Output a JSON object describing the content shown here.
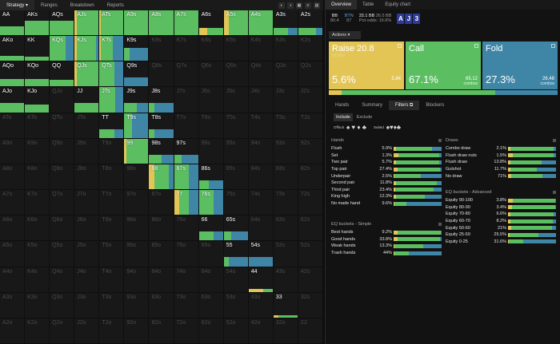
{
  "colors": {
    "raise": "#e3c555",
    "call": "#5bbf62",
    "fold": "#3f86a6",
    "empty": "#181818"
  },
  "left_tabs": [
    {
      "label": "Strategy ▾",
      "active": true
    },
    {
      "label": "Ranges"
    },
    {
      "label": "Breakdown"
    },
    {
      "label": "Reports"
    }
  ],
  "grid": [
    [
      "AA",
      "AKs",
      "AQs",
      "AJs",
      "ATs",
      "A9s",
      "A8s",
      "A7s",
      "A6s",
      "A5s",
      "A4s",
      "A3s",
      "A2s"
    ],
    [
      "AKo",
      "KK",
      "KQs",
      "KJs",
      "KTs",
      "K9s",
      "K8s",
      "K7s",
      "K6s",
      "K5s",
      "K4s",
      "K3s",
      "K2s"
    ],
    [
      "AQo",
      "KQo",
      "QQ",
      "QJs",
      "QTs",
      "Q9s",
      "Q8s",
      "Q7s",
      "Q6s",
      "Q5s",
      "Q4s",
      "Q3s",
      "Q2s"
    ],
    [
      "AJo",
      "KJo",
      "QJo",
      "JJ",
      "JTs",
      "J9s",
      "J8s",
      "J7s",
      "J6s",
      "J5s",
      "J4s",
      "J3s",
      "J2s"
    ],
    [
      "ATo",
      "KTo",
      "QTo",
      "JTo",
      "TT",
      "T9s",
      "T8s",
      "T7s",
      "T6s",
      "T5s",
      "T4s",
      "T3s",
      "T2s"
    ],
    [
      "A9o",
      "K9o",
      "Q9o",
      "J9o",
      "T9o",
      "99",
      "98s",
      "97s",
      "96s",
      "95s",
      "94s",
      "93s",
      "92s"
    ],
    [
      "A8o",
      "K8o",
      "Q8o",
      "J8o",
      "T8o",
      "98o",
      "88",
      "87s",
      "86s",
      "85s",
      "84s",
      "83s",
      "82s"
    ],
    [
      "A7o",
      "K7o",
      "Q7o",
      "J7o",
      "T7o",
      "97o",
      "87o",
      "77",
      "76s",
      "75s",
      "74s",
      "73s",
      "72s"
    ],
    [
      "A6o",
      "K6o",
      "Q6o",
      "J6o",
      "T6o",
      "96o",
      "86o",
      "76o",
      "66",
      "65s",
      "64s",
      "63s",
      "62s"
    ],
    [
      "A5o",
      "K5o",
      "Q5o",
      "J5o",
      "T5o",
      "95o",
      "85o",
      "75o",
      "65o",
      "55",
      "54s",
      "53s",
      "52s"
    ],
    [
      "A4o",
      "K4o",
      "Q4o",
      "J4o",
      "T4o",
      "94o",
      "84o",
      "74o",
      "64o",
      "54o",
      "44",
      "43s",
      "42s"
    ],
    [
      "A3o",
      "K3o",
      "Q3o",
      "J3o",
      "T3o",
      "93o",
      "83o",
      "73o",
      "63o",
      "53o",
      "43o",
      "33",
      "32s"
    ],
    [
      "A2o",
      "K2o",
      "Q2o",
      "J2o",
      "T2o",
      "92o",
      "82o",
      "72o",
      "62o",
      "52o",
      "42o",
      "32o",
      "22"
    ]
  ],
  "right_tabs": [
    {
      "label": "Overview",
      "active": true
    },
    {
      "label": "Table"
    },
    {
      "label": "Equity chart"
    }
  ],
  "info": {
    "pos1": "BB",
    "stack1": "80.4",
    "pos2": "BTN",
    "stack2": "87",
    "pot": "33.1 BB",
    "pot2": "26.5 BB",
    "pot_odds_label": "Pot odds:",
    "pot_odds": "16.6%",
    "board": [
      "A",
      "J",
      "3"
    ]
  },
  "actions_label": "Actions ▾",
  "actions": [
    {
      "name": "Raise 20.8",
      "sub": "(63%)",
      "pct": "5.6%",
      "amount": "5.84",
      "combos": "",
      "color": "#e3c555"
    },
    {
      "name": "Call",
      "sub": "",
      "pct": "67.1%",
      "amount": "65.12",
      "combos": "combos",
      "color": "#5bbf62"
    },
    {
      "name": "Fold",
      "sub": "",
      "pct": "27.3%",
      "amount": "26.48",
      "combos": "combos",
      "color": "#3f86a6"
    }
  ],
  "freq": {
    "raise": 0.056,
    "call": 0.671,
    "fold": 0.273
  },
  "sub_tabs": [
    {
      "label": "Hands"
    },
    {
      "label": "Summary"
    },
    {
      "label": "Filters ⧉",
      "active": true
    },
    {
      "label": "Blockers"
    }
  ],
  "include_tabs": [
    {
      "label": "Include",
      "active": true
    },
    {
      "label": "Exclude"
    }
  ],
  "suit_labels": {
    "offsuit": "Offsuit",
    "suited": "Suited",
    "offsuit_glyphs": "♠ ♥ ♦ ♣",
    "suited_glyphs": "♠♥♦♣"
  },
  "hands_title": "Hands",
  "hands": [
    {
      "name": "Flush",
      "pct": "5.9%",
      "r": 0.05,
      "c": 0.75,
      "f": 0.2
    },
    {
      "name": "Set",
      "pct": "1.3%",
      "r": 0.1,
      "c": 0.85,
      "f": 0.05
    },
    {
      "name": "Two pair",
      "pct": "5.7%",
      "r": 0.05,
      "c": 0.9,
      "f": 0.05
    },
    {
      "name": "Top pair",
      "pct": "27.4%",
      "r": 0.08,
      "c": 0.88,
      "f": 0.04
    },
    {
      "name": "Underpair",
      "pct": "2.5%",
      "r": 0.02,
      "c": 0.55,
      "f": 0.43
    },
    {
      "name": "Second pair",
      "pct": "11.8%",
      "r": 0.05,
      "c": 0.85,
      "f": 0.1
    },
    {
      "name": "Third pair",
      "pct": "23.4%",
      "r": 0.03,
      "c": 0.8,
      "f": 0.17
    },
    {
      "name": "King high",
      "pct": "12.3%",
      "r": 0.05,
      "c": 0.6,
      "f": 0.35
    },
    {
      "name": "No made hand",
      "pct": "9.6%",
      "r": 0.02,
      "c": 0.25,
      "f": 0.73
    }
  ],
  "draws_title": "Draws",
  "draws": [
    {
      "name": "Combo draw",
      "pct": "2.1%",
      "r": 0.05,
      "c": 0.9,
      "f": 0.05
    },
    {
      "name": "Flush draw nuts",
      "pct": "1.5%",
      "r": 0.1,
      "c": 0.85,
      "f": 0.05
    },
    {
      "name": "Flush draw",
      "pct": "13.8%",
      "r": 0.05,
      "c": 0.65,
      "f": 0.3
    },
    {
      "name": "Gutshot",
      "pct": "11.7%",
      "r": 0.05,
      "c": 0.55,
      "f": 0.4
    },
    {
      "name": "No draw",
      "pct": "71%",
      "r": 0.06,
      "c": 0.66,
      "f": 0.28
    }
  ],
  "eq_simple_title": "EQ buckets - Simple",
  "eq_simple": [
    {
      "name": "Best hands",
      "pct": "9.2%",
      "r": 0.08,
      "c": 0.9,
      "f": 0.02
    },
    {
      "name": "Good hands",
      "pct": "33.8%",
      "r": 0.08,
      "c": 0.88,
      "f": 0.04
    },
    {
      "name": "Weak hands",
      "pct": "13.3%",
      "r": 0.02,
      "c": 0.6,
      "f": 0.38
    },
    {
      "name": "Trash hands",
      "pct": "44%",
      "r": 0.02,
      "c": 0.3,
      "f": 0.68
    }
  ],
  "eq_adv_title": "EQ buckets - Advanced",
  "eq_adv": [
    {
      "name": "Equity 90-100",
      "pct": "3.8%",
      "r": 0.1,
      "c": 0.88,
      "f": 0.02
    },
    {
      "name": "Equity 80-90",
      "pct": "3.4%",
      "r": 0.08,
      "c": 0.9,
      "f": 0.02
    },
    {
      "name": "Equity 70-80",
      "pct": "6.6%",
      "r": 0.05,
      "c": 0.9,
      "f": 0.05
    },
    {
      "name": "Equity 60-70",
      "pct": "8.2%",
      "r": 0.05,
      "c": 0.88,
      "f": 0.07
    },
    {
      "name": "Equity 50-60",
      "pct": "21%",
      "r": 0.06,
      "c": 0.86,
      "f": 0.08
    },
    {
      "name": "Equity 25-50",
      "pct": "25.5%",
      "r": 0.03,
      "c": 0.6,
      "f": 0.37
    },
    {
      "name": "Equity 0-25",
      "pct": "31.6%",
      "r": 0.02,
      "c": 0.3,
      "f": 0.68
    }
  ]
}
